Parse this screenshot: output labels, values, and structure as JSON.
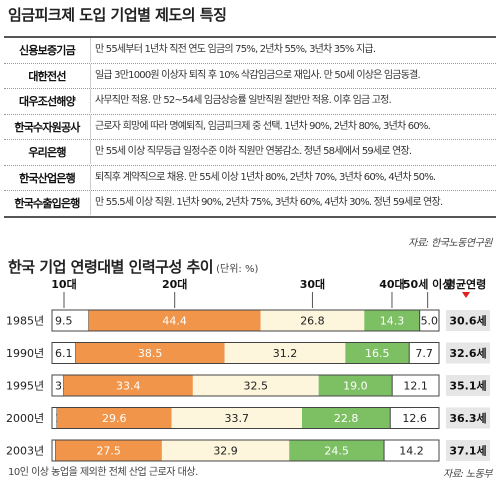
{
  "top_title": "임금피크제 도입 기업별 제도의 특징",
  "companies": [
    {
      "name": "신용보증기금",
      "desc": "만 55세부터 1년차 직전 연도 임금의 75%, 2년차 55%, 3년차 35% 지급."
    },
    {
      "name": "대한전선",
      "desc": "일급 3만1000원 이상자 퇴직 후 10% 삭감임금으로 재입사. 만 50세 이상은 임금동결."
    },
    {
      "name": "대우조선해양",
      "desc": "사무직만 적용. 만 52~54세 임금상승률 일반직원 절반만 적용. 이후 임금 고정."
    },
    {
      "name": "한국수자원공사",
      "desc": "근로자 희망에 따라 명예퇴직, 임금피크제 중 선택. 1년차 90%, 2년차 80%, 3년차 60%."
    },
    {
      "name": "우리은행",
      "desc": "만 55세 이상 직무등급 일정수준 이하 직원만 연봉감소. 정년 58세에서 59세로 연장."
    },
    {
      "name": "한국산업은행",
      "desc": "퇴직후 계약직으로 채용. 만 55세 이상 1년차 80%, 2년차 70%, 3년차 60%, 4년차 50%."
    },
    {
      "name": "한국수출입은행",
      "desc": "만 55.5세 이상 직원. 1년차 90%, 2년차 75%, 3년차 60%, 4년차 30%. 정년 59세로 연장."
    }
  ],
  "source_top": "자료: 한국노동연구원",
  "chart_title": "한국 기업 연령대별 인력구성 추이",
  "chart_unit": "(단위: %)",
  "footnote": "10인 이상 농업을 제외한 전체 산업 근로자 대상.",
  "source_bottom": "자료: 노동부",
  "colors": {
    "orange": "#f0954a",
    "cream": "#fdf6dc",
    "green": "#7dbf63",
    "white": "#ffffff",
    "avg_bg": "#e6e6e6",
    "marker_red": "#e02020"
  },
  "chart_data": {
    "type": "bar",
    "orientation": "horizontal-stacked",
    "title": "한국 기업 연령대별 인력구성 추이",
    "unit": "(단위: %)",
    "categories": [
      "1985년",
      "1990년",
      "1995년",
      "2000년",
      "2003년"
    ],
    "series": [
      {
        "name": "10대",
        "values": [
          9.5,
          6.1,
          3.0,
          1.3,
          0.9
        ]
      },
      {
        "name": "20대",
        "values": [
          44.4,
          38.5,
          33.4,
          29.6,
          27.5
        ]
      },
      {
        "name": "30대",
        "values": [
          26.8,
          31.2,
          32.5,
          33.7,
          32.9
        ]
      },
      {
        "name": "40대",
        "values": [
          14.3,
          16.5,
          19.0,
          22.8,
          24.5
        ]
      },
      {
        "name": "50세 이상",
        "values": [
          5.0,
          7.7,
          12.1,
          12.6,
          14.2
        ]
      }
    ],
    "avg_label": "평균연령",
    "avg_values": [
      "30.6세",
      "32.6세",
      "35.1세",
      "36.3세",
      "37.1세"
    ],
    "legend_placement": "top"
  }
}
